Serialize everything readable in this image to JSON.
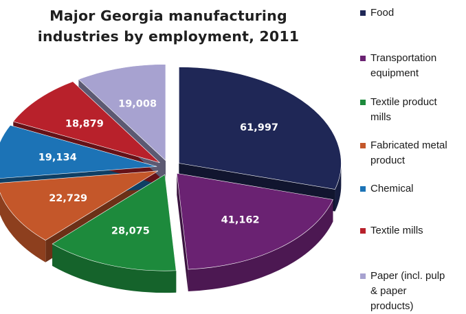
{
  "chart_data": {
    "type": "pie",
    "style": "3d-exploded",
    "title_lines": [
      "Major Georgia manufacturing",
      "industries by employment, 2011"
    ],
    "slices": [
      {
        "name": "Food",
        "value": 61997,
        "label": "61,997",
        "color": "#1f2756"
      },
      {
        "name": "Transportation equipment",
        "value": 41162,
        "label": "41,162",
        "color": "#6a2272"
      },
      {
        "name": "Textile product mills",
        "value": 28075,
        "label": "28,075",
        "color": "#1d8a3c"
      },
      {
        "name": "Fabricated metal product",
        "value": 22729,
        "label": "22,729",
        "color": "#c4572a"
      },
      {
        "name": "Chemical",
        "value": 19134,
        "label": "19,134",
        "color": "#1c73b6"
      },
      {
        "name": "Textile mills",
        "value": 18879,
        "label": "18,879",
        "color": "#b8212b"
      },
      {
        "name": "Paper (incl. pulp & paper products)",
        "value": 19008,
        "label": "19,008",
        "color": "#a7a2d0"
      }
    ],
    "legend": {
      "position": "right",
      "entries": [
        "Food",
        "Transportation\nequipment",
        "Textile product\nmills",
        "Fabricated metal\nproduct",
        "Chemical",
        "Textile mills",
        "Paper (incl. pulp\n& paper\nproducts)"
      ]
    }
  }
}
